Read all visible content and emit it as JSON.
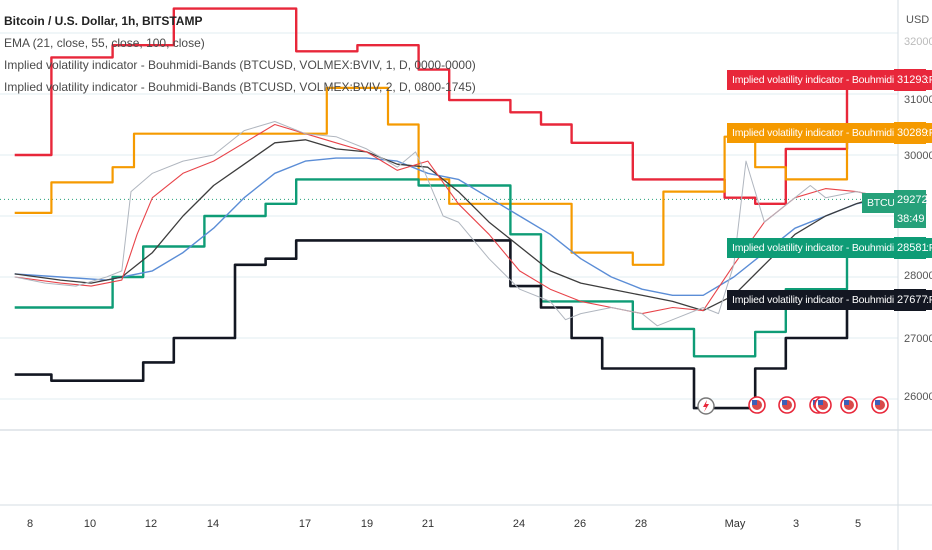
{
  "legend": {
    "title": "Bitcoin / U.S. Dollar, 1h, BITSTAMP",
    "ema": "EMA (21, close, 55, close, 100, close)",
    "ivi1": "Implied volatility indicator - Bouhmidi-Bands (BTCUSD, VOLMEX:BVIV, 1, D, 0000-0000)",
    "ivi2": "Implied volatility indicator - Bouhmidi-Bands (BTCUSD, VOLMEX:BVIV, 2, D, 0800-1745)"
  },
  "axis": {
    "currency": "USD",
    "y_ticks": [
      "32000",
      "31000",
      "30000",
      "29000",
      "28000",
      "27000",
      "26000"
    ],
    "x_ticks": [
      "8",
      "10",
      "12",
      "14",
      "17",
      "19",
      "21",
      "24",
      "26",
      "28",
      "May",
      "3",
      "5"
    ]
  },
  "price_tags": {
    "red": {
      "label": "Implied volatility indicator - Bouhmidi-Bands:Plot",
      "value": "31293",
      "color": "#e8273a"
    },
    "orange": {
      "label": "Implied volatility indicator - Bouhmidi-Bands:Plot",
      "value": "30289",
      "color": "#f59a00"
    },
    "btc": {
      "label": "BTCUSD",
      "value": "29272",
      "countdown": "38:49",
      "color": "#26a17a"
    },
    "green": {
      "label": "Implied volatility indicator - Bouhmidi-Bands:Plot",
      "value": "28581",
      "color": "#0e9c76"
    },
    "black": {
      "label": "Implied volatility indicator - Bouhmidi-Bands:Plot",
      "value": "27677",
      "color": "#131722"
    }
  },
  "chart_data": {
    "type": "line",
    "y_range": [
      25500,
      32700
    ],
    "x_range_days": [
      0,
      31
    ],
    "series": [
      {
        "color": "#e8273a",
        "points": [
          [
            -0.5,
            30000
          ],
          [
            0.7,
            30000
          ],
          [
            0.7,
            31600
          ],
          [
            2.7,
            31600
          ],
          [
            2.7,
            31800
          ],
          [
            4.7,
            31800
          ],
          [
            4.7,
            32400
          ],
          [
            8.7,
            32400
          ],
          [
            8.7,
            31700
          ],
          [
            10.7,
            31700
          ],
          [
            10.7,
            31800
          ],
          [
            12.7,
            31800
          ],
          [
            12.7,
            31400
          ],
          [
            13.7,
            31400
          ],
          [
            13.7,
            30900
          ],
          [
            15.7,
            30900
          ],
          [
            15.7,
            30700
          ],
          [
            16.7,
            30700
          ],
          [
            16.7,
            30500
          ],
          [
            17.7,
            30500
          ],
          [
            17.7,
            30200
          ],
          [
            19.7,
            30200
          ],
          [
            19.7,
            29600
          ],
          [
            22.7,
            29600
          ],
          [
            22.7,
            29300
          ],
          [
            23.7,
            29300
          ],
          [
            23.7,
            29200
          ],
          [
            24.7,
            29200
          ],
          [
            24.7,
            30100
          ],
          [
            26.7,
            30100
          ],
          [
            26.7,
            31300
          ],
          [
            29.9,
            31300
          ]
        ]
      },
      {
        "color": "#f59a00",
        "points": [
          [
            -0.5,
            29050
          ],
          [
            0.7,
            29050
          ],
          [
            0.7,
            29550
          ],
          [
            2.7,
            29550
          ],
          [
            2.7,
            29800
          ],
          [
            3.4,
            29800
          ],
          [
            3.4,
            30350
          ],
          [
            9.7,
            30350
          ],
          [
            9.7,
            31100
          ],
          [
            11.7,
            31100
          ],
          [
            11.7,
            30500
          ],
          [
            12.7,
            30500
          ],
          [
            12.7,
            29600
          ],
          [
            13.7,
            29600
          ],
          [
            13.7,
            29200
          ],
          [
            17.7,
            29200
          ],
          [
            17.7,
            28400
          ],
          [
            19.7,
            28400
          ],
          [
            19.7,
            28200
          ],
          [
            20.7,
            28200
          ],
          [
            20.7,
            29400
          ],
          [
            22.7,
            29400
          ],
          [
            22.7,
            30300
          ],
          [
            23.7,
            30300
          ],
          [
            23.7,
            29800
          ],
          [
            24.7,
            29800
          ],
          [
            24.7,
            29600
          ],
          [
            26.7,
            29600
          ],
          [
            26.7,
            30300
          ],
          [
            29.9,
            30300
          ]
        ]
      },
      {
        "color": "#0e9c76",
        "points": [
          [
            -0.5,
            27500
          ],
          [
            2.7,
            27500
          ],
          [
            2.7,
            28000
          ],
          [
            3.7,
            28000
          ],
          [
            3.7,
            28500
          ],
          [
            5.7,
            28500
          ],
          [
            5.7,
            29000
          ],
          [
            7.7,
            29000
          ],
          [
            7.7,
            29200
          ],
          [
            8.7,
            29200
          ],
          [
            8.7,
            29600
          ],
          [
            12.7,
            29600
          ],
          [
            12.7,
            29500
          ],
          [
            15.7,
            29500
          ],
          [
            15.7,
            28700
          ],
          [
            16.7,
            28700
          ],
          [
            16.7,
            27600
          ],
          [
            19.7,
            27600
          ],
          [
            19.7,
            27150
          ],
          [
            21.7,
            27150
          ],
          [
            21.7,
            26700
          ],
          [
            23.7,
            26700
          ],
          [
            23.7,
            27100
          ],
          [
            24.7,
            27100
          ],
          [
            24.7,
            27800
          ],
          [
            26.7,
            27800
          ],
          [
            26.7,
            28600
          ],
          [
            29.9,
            28600
          ]
        ]
      },
      {
        "color": "#131722",
        "points": [
          [
            -0.5,
            26400
          ],
          [
            0.7,
            26400
          ],
          [
            0.7,
            26300
          ],
          [
            3.7,
            26300
          ],
          [
            3.7,
            26600
          ],
          [
            4.7,
            26600
          ],
          [
            4.7,
            27000
          ],
          [
            6.7,
            27000
          ],
          [
            6.7,
            28200
          ],
          [
            7.7,
            28200
          ],
          [
            7.7,
            28300
          ],
          [
            8.7,
            28300
          ],
          [
            8.7,
            28600
          ],
          [
            15.7,
            28600
          ],
          [
            15.7,
            27850
          ],
          [
            16.7,
            27850
          ],
          [
            16.7,
            27500
          ],
          [
            17.7,
            27500
          ],
          [
            17.7,
            27000
          ],
          [
            18.7,
            27000
          ],
          [
            18.7,
            26500
          ],
          [
            21.7,
            26500
          ],
          [
            21.7,
            25850
          ],
          [
            23.7,
            25850
          ],
          [
            23.7,
            26500
          ],
          [
            24.7,
            26500
          ],
          [
            24.7,
            27000
          ],
          [
            26.7,
            27000
          ],
          [
            26.7,
            27700
          ],
          [
            29.9,
            27700
          ]
        ]
      },
      {
        "color": "#5b8dd6",
        "points": [
          [
            -0.5,
            28050
          ],
          [
            1,
            28000
          ],
          [
            2.5,
            27950
          ],
          [
            4,
            28100
          ],
          [
            5,
            28400
          ],
          [
            6,
            28800
          ],
          [
            7,
            29300
          ],
          [
            8,
            29700
          ],
          [
            9,
            29900
          ],
          [
            10,
            29950
          ],
          [
            11,
            29950
          ],
          [
            12,
            29900
          ],
          [
            13,
            29700
          ],
          [
            14,
            29600
          ],
          [
            15,
            29300
          ],
          [
            16,
            29000
          ],
          [
            17,
            28700
          ],
          [
            18,
            28300
          ],
          [
            19,
            28000
          ],
          [
            20,
            27800
          ],
          [
            21,
            27700
          ],
          [
            22,
            27700
          ],
          [
            23,
            28000
          ],
          [
            24,
            28400
          ],
          [
            25,
            28800
          ],
          [
            26,
            29000
          ],
          [
            27,
            29200
          ],
          [
            28,
            29300
          ],
          [
            29.3,
            29250
          ]
        ]
      },
      {
        "color": "#3d3d3d",
        "points": [
          [
            -0.5,
            28050
          ],
          [
            1,
            27950
          ],
          [
            2,
            27900
          ],
          [
            3,
            28000
          ],
          [
            4,
            28400
          ],
          [
            5,
            29000
          ],
          [
            6,
            29500
          ],
          [
            7,
            29850
          ],
          [
            8,
            30200
          ],
          [
            9,
            30250
          ],
          [
            10,
            30100
          ],
          [
            11,
            30050
          ],
          [
            12,
            29850
          ],
          [
            13,
            29800
          ],
          [
            14,
            29400
          ],
          [
            15,
            28900
          ],
          [
            16,
            28500
          ],
          [
            17,
            28100
          ],
          [
            18,
            27900
          ],
          [
            19,
            27800
          ],
          [
            20,
            27700
          ],
          [
            21,
            27600
          ],
          [
            22,
            27450
          ],
          [
            23,
            27700
          ],
          [
            24,
            28200
          ],
          [
            25,
            28700
          ],
          [
            26,
            29000
          ],
          [
            27,
            29200
          ],
          [
            28,
            29350
          ],
          [
            29.3,
            29350
          ]
        ]
      },
      {
        "color": "#e8444a",
        "points": [
          [
            -0.5,
            28000
          ],
          [
            1,
            27900
          ],
          [
            2,
            27850
          ],
          [
            3,
            27950
          ],
          [
            3.5,
            28700
          ],
          [
            4,
            29300
          ],
          [
            5,
            29700
          ],
          [
            6,
            29900
          ],
          [
            7,
            30200
          ],
          [
            8,
            30500
          ],
          [
            9,
            30350
          ],
          [
            10,
            30200
          ],
          [
            11,
            30050
          ],
          [
            12,
            29750
          ],
          [
            13,
            29900
          ],
          [
            14,
            29200
          ],
          [
            15,
            28700
          ],
          [
            16,
            28100
          ],
          [
            17,
            27800
          ],
          [
            18,
            27600
          ],
          [
            19,
            27500
          ],
          [
            20,
            27400
          ],
          [
            21,
            27500
          ],
          [
            22,
            27450
          ],
          [
            23,
            28200
          ],
          [
            24,
            28900
          ],
          [
            25,
            29300
          ],
          [
            26,
            29450
          ],
          [
            27,
            29400
          ],
          [
            28,
            29300
          ],
          [
            29.3,
            29300
          ]
        ]
      },
      {
        "color": "#b0b6bf",
        "points": [
          [
            -0.5,
            28000
          ],
          [
            0.5,
            27900
          ],
          [
            1.5,
            27850
          ],
          [
            2.5,
            28000
          ],
          [
            3,
            28100
          ],
          [
            3.3,
            29400
          ],
          [
            4,
            29700
          ],
          [
            5,
            29900
          ],
          [
            6,
            30000
          ],
          [
            7,
            30400
          ],
          [
            8,
            30550
          ],
          [
            9,
            30350
          ],
          [
            10,
            30300
          ],
          [
            11,
            30100
          ],
          [
            12,
            29800
          ],
          [
            12.6,
            30050
          ],
          [
            13,
            29600
          ],
          [
            13.5,
            29000
          ],
          [
            14,
            28900
          ],
          [
            15,
            28300
          ],
          [
            16,
            27800
          ],
          [
            17,
            27600
          ],
          [
            17.5,
            27300
          ],
          [
            18,
            27400
          ],
          [
            19,
            27500
          ],
          [
            20,
            27400
          ],
          [
            20.5,
            27200
          ],
          [
            21,
            27300
          ],
          [
            22,
            27500
          ],
          [
            22.5,
            27400
          ],
          [
            23,
            28200
          ],
          [
            23.4,
            29900
          ],
          [
            24,
            28900
          ],
          [
            25,
            29300
          ],
          [
            25.5,
            29500
          ],
          [
            26,
            29300
          ],
          [
            27,
            29400
          ],
          [
            28,
            29300
          ],
          [
            29.3,
            29200
          ]
        ]
      }
    ]
  }
}
